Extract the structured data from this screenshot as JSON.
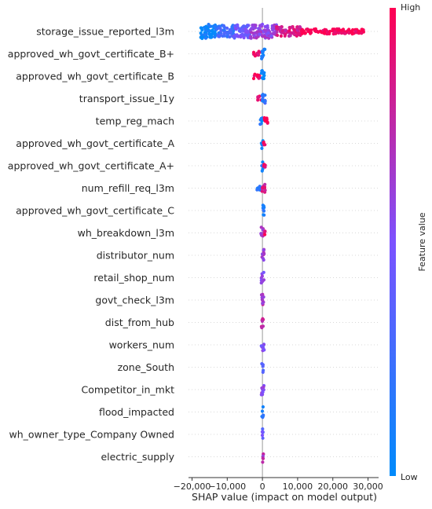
{
  "chart_data": {
    "type": "scatter",
    "subtype": "shap-beeswarm",
    "features": [
      "storage_issue_reported_l3m",
      "approved_wh_govt_certificate_B+",
      "approved_wh_govt_certificate_B",
      "transport_issue_l1y",
      "temp_reg_mach",
      "approved_wh_govt_certificate_A",
      "approved_wh_govt_certificate_A+",
      "num_refill_req_l3m",
      "approved_wh_govt_certificate_C",
      "wh_breakdown_l3m",
      "distributor_num",
      "retail_shop_num",
      "govt_check_l3m",
      "dist_from_hub",
      "workers_num",
      "zone_South",
      "Competitor_in_mkt",
      "flood_impacted",
      "wh_owner_type_Company Owned",
      "electric_supply"
    ],
    "xlim": [
      -21000,
      33000
    ],
    "x_ticks": [
      -20000,
      -10000,
      0,
      10000,
      20000,
      30000
    ],
    "x_tick_labels": [
      "−20,000",
      "−10,000",
      "0",
      "10,000",
      "20,000",
      "30,000"
    ],
    "xlabel": "SHAP value (impact on model output)",
    "zero_line": true,
    "row_gridlines": "dotted",
    "colorbar": {
      "label": "Feature value",
      "high_label": "High",
      "low_label": "Low",
      "low_color": "#008bfb",
      "mid_color": "#7c52ff",
      "high_color": "#ff0052"
    },
    "distributions": [
      {
        "feature": "storage_issue_reported_l3m",
        "segments": [
          {
            "x0": -17500,
            "x1": -13000,
            "spread": 1.0,
            "color": 0.05
          },
          {
            "x0": -13000,
            "x1": -8000,
            "spread": 0.85,
            "color": 0.25
          },
          {
            "x0": -8000,
            "x1": -3500,
            "spread": 0.95,
            "color": 0.45
          },
          {
            "x0": -3500,
            "x1": 4000,
            "spread": 1.0,
            "color": 0.6
          },
          {
            "x0": 4000,
            "x1": 11000,
            "spread": 0.7,
            "color": 0.85
          },
          {
            "x0": 11000,
            "x1": 29000,
            "spread": 0.35,
            "color": 1.0
          }
        ]
      },
      {
        "feature": "approved_wh_govt_certificate_B+",
        "segments": [
          {
            "x0": -2500,
            "x1": -800,
            "spread": 0.35,
            "color": 0.95
          },
          {
            "x0": -300,
            "x1": 700,
            "spread": 0.8,
            "color": 0.05
          }
        ]
      },
      {
        "feature": "approved_wh_govt_certificate_B",
        "segments": [
          {
            "x0": -2500,
            "x1": -800,
            "spread": 0.35,
            "color": 0.95
          },
          {
            "x0": -300,
            "x1": 700,
            "spread": 0.8,
            "color": 0.05
          }
        ]
      },
      {
        "feature": "transport_issue_l1y",
        "segments": [
          {
            "x0": -1500,
            "x1": -300,
            "spread": 0.4,
            "color": 0.9
          },
          {
            "x0": -200,
            "x1": 900,
            "spread": 0.7,
            "color": 0.2
          }
        ]
      },
      {
        "feature": "temp_reg_mach",
        "segments": [
          {
            "x0": -800,
            "x1": 200,
            "spread": 0.5,
            "color": 0.1
          },
          {
            "x0": 200,
            "x1": 1500,
            "spread": 0.45,
            "color": 0.95
          }
        ]
      },
      {
        "feature": "approved_wh_govt_certificate_A",
        "segments": [
          {
            "x0": -300,
            "x1": 300,
            "spread": 0.8,
            "color": 0.1
          },
          {
            "x0": 300,
            "x1": 800,
            "spread": 0.3,
            "color": 0.95
          }
        ]
      },
      {
        "feature": "approved_wh_govt_certificate_A+",
        "segments": [
          {
            "x0": -300,
            "x1": 300,
            "spread": 0.8,
            "color": 0.1
          },
          {
            "x0": 300,
            "x1": 800,
            "spread": 0.3,
            "color": 0.95
          }
        ]
      },
      {
        "feature": "num_refill_req_l3m",
        "segments": [
          {
            "x0": -1800,
            "x1": -200,
            "spread": 0.35,
            "color": 0.15
          },
          {
            "x0": -200,
            "x1": 800,
            "spread": 0.7,
            "color": 0.85
          }
        ]
      },
      {
        "feature": "approved_wh_govt_certificate_C",
        "segments": [
          {
            "x0": -200,
            "x1": 500,
            "spread": 0.85,
            "color": 0.1
          }
        ]
      },
      {
        "feature": "wh_breakdown_l3m",
        "segments": [
          {
            "x0": -400,
            "x1": 300,
            "spread": 0.85,
            "color": 0.6
          },
          {
            "x0": 300,
            "x1": 800,
            "spread": 0.25,
            "color": 0.9
          }
        ]
      },
      {
        "feature": "distributor_num",
        "segments": [
          {
            "x0": -400,
            "x1": 500,
            "spread": 0.85,
            "color": 0.65
          }
        ]
      },
      {
        "feature": "retail_shop_num",
        "segments": [
          {
            "x0": -400,
            "x1": 500,
            "spread": 0.85,
            "color": 0.55
          }
        ]
      },
      {
        "feature": "govt_check_l3m",
        "segments": [
          {
            "x0": -400,
            "x1": 500,
            "spread": 0.85,
            "color": 0.7
          }
        ]
      },
      {
        "feature": "dist_from_hub",
        "segments": [
          {
            "x0": -300,
            "x1": 400,
            "spread": 0.85,
            "color": 0.75
          }
        ]
      },
      {
        "feature": "workers_num",
        "segments": [
          {
            "x0": -400,
            "x1": 500,
            "spread": 0.85,
            "color": 0.5
          }
        ]
      },
      {
        "feature": "zone_South",
        "segments": [
          {
            "x0": -200,
            "x1": 300,
            "spread": 0.85,
            "color": 0.3
          }
        ]
      },
      {
        "feature": "Competitor_in_mkt",
        "segments": [
          {
            "x0": -300,
            "x1": 500,
            "spread": 0.85,
            "color": 0.6
          }
        ]
      },
      {
        "feature": "flood_impacted",
        "segments": [
          {
            "x0": -200,
            "x1": 300,
            "spread": 0.85,
            "color": 0.15
          }
        ]
      },
      {
        "feature": "wh_owner_type_Company Owned",
        "segments": [
          {
            "x0": -200,
            "x1": 300,
            "spread": 0.85,
            "color": 0.4
          }
        ]
      },
      {
        "feature": "electric_supply",
        "segments": [
          {
            "x0": -200,
            "x1": 300,
            "spread": 0.85,
            "color": 0.7
          }
        ]
      }
    ]
  }
}
